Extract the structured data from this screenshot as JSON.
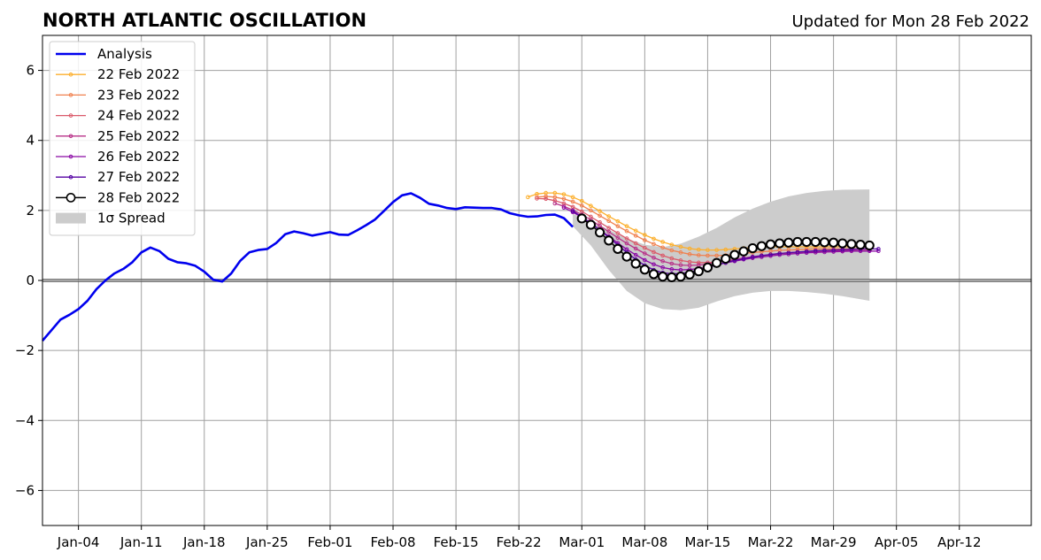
{
  "chart_data": {
    "type": "line",
    "title": "NORTH ATLANTIC OSCILLATION",
    "updated": "Updated for Mon 28 Feb 2022",
    "xlabel": "",
    "ylabel": "",
    "x_axis": {
      "start": "2021-12-31",
      "end": "2022-04-20",
      "ticks": [
        "Jan-04",
        "Jan-11",
        "Jan-18",
        "Jan-25",
        "Feb-01",
        "Feb-08",
        "Feb-15",
        "Feb-22",
        "Mar-01",
        "Mar-08",
        "Mar-15",
        "Mar-22",
        "Mar-29",
        "Apr-05",
        "Apr-12"
      ],
      "tick_dates": [
        "2022-01-04",
        "2022-01-11",
        "2022-01-18",
        "2022-01-25",
        "2022-02-01",
        "2022-02-08",
        "2022-02-15",
        "2022-02-22",
        "2022-03-01",
        "2022-03-08",
        "2022-03-15",
        "2022-03-22",
        "2022-03-29",
        "2022-04-05",
        "2022-04-12"
      ]
    },
    "ylim": [
      -7,
      7
    ],
    "yticks": [
      -6,
      -4,
      -2,
      0,
      2,
      4,
      6
    ],
    "ytick_labels": [
      "−6",
      "−4",
      "−2",
      "0",
      "2",
      "4",
      "6"
    ],
    "grid": true,
    "legend_position": "top-left",
    "legend": [
      "Analysis",
      "22 Feb 2022",
      "23 Feb 2022",
      "24 Feb 2022",
      "25 Feb 2022",
      "26 Feb 2022",
      "27 Feb 2022",
      "28 Feb 2022",
      "1σ Spread"
    ],
    "analysis": {
      "name": "Analysis",
      "color": "#0000ee",
      "points": [
        [
          "2021-12-31",
          -1.72
        ],
        [
          "2022-01-01",
          -1.42
        ],
        [
          "2022-01-02",
          -1.12
        ],
        [
          "2022-01-03",
          -0.98
        ],
        [
          "2022-01-04",
          -0.82
        ],
        [
          "2022-01-05",
          -0.58
        ],
        [
          "2022-01-06",
          -0.25
        ],
        [
          "2022-01-07",
          0.0
        ],
        [
          "2022-01-08",
          0.2
        ],
        [
          "2022-01-09",
          0.33
        ],
        [
          "2022-01-10",
          0.52
        ],
        [
          "2022-01-11",
          0.8
        ],
        [
          "2022-01-12",
          0.94
        ],
        [
          "2022-01-13",
          0.84
        ],
        [
          "2022-01-14",
          0.62
        ],
        [
          "2022-01-15",
          0.52
        ],
        [
          "2022-01-16",
          0.49
        ],
        [
          "2022-01-17",
          0.42
        ],
        [
          "2022-01-18",
          0.25
        ],
        [
          "2022-01-19",
          0.02
        ],
        [
          "2022-01-20",
          -0.03
        ],
        [
          "2022-01-21",
          0.2
        ],
        [
          "2022-01-22",
          0.56
        ],
        [
          "2022-01-23",
          0.8
        ],
        [
          "2022-01-24",
          0.87
        ],
        [
          "2022-01-25",
          0.9
        ],
        [
          "2022-01-26",
          1.07
        ],
        [
          "2022-01-27",
          1.32
        ],
        [
          "2022-01-28",
          1.4
        ],
        [
          "2022-01-29",
          1.35
        ],
        [
          "2022-01-30",
          1.28
        ],
        [
          "2022-01-31",
          1.33
        ],
        [
          "2022-02-01",
          1.38
        ],
        [
          "2022-02-02",
          1.31
        ],
        [
          "2022-02-03",
          1.3
        ],
        [
          "2022-02-04",
          1.43
        ],
        [
          "2022-02-05",
          1.58
        ],
        [
          "2022-02-06",
          1.74
        ],
        [
          "2022-02-07",
          1.99
        ],
        [
          "2022-02-08",
          2.24
        ],
        [
          "2022-02-09",
          2.43
        ],
        [
          "2022-02-10",
          2.49
        ],
        [
          "2022-02-11",
          2.36
        ],
        [
          "2022-02-12",
          2.19
        ],
        [
          "2022-02-13",
          2.14
        ],
        [
          "2022-02-14",
          2.07
        ],
        [
          "2022-02-15",
          2.04
        ],
        [
          "2022-02-16",
          2.09
        ],
        [
          "2022-02-17",
          2.08
        ],
        [
          "2022-02-18",
          2.07
        ],
        [
          "2022-02-19",
          2.07
        ],
        [
          "2022-02-20",
          2.03
        ],
        [
          "2022-02-21",
          1.92
        ],
        [
          "2022-02-22",
          1.86
        ],
        [
          "2022-02-23",
          1.82
        ],
        [
          "2022-02-24",
          1.83
        ],
        [
          "2022-02-25",
          1.87
        ],
        [
          "2022-02-26",
          1.88
        ],
        [
          "2022-02-27",
          1.78
        ],
        [
          "2022-02-28",
          1.53
        ]
      ]
    },
    "forecasts": [
      {
        "name": "22 Feb 2022",
        "color": "#fcaf2c",
        "start": "2022-02-23",
        "values": [
          2.38,
          2.47,
          2.5,
          2.5,
          2.46,
          2.38,
          2.27,
          2.13,
          1.98,
          1.83,
          1.69,
          1.55,
          1.42,
          1.3,
          1.19,
          1.1,
          1.02,
          0.96,
          0.91,
          0.88,
          0.87,
          0.87,
          0.88,
          0.9,
          0.92,
          0.94,
          0.95,
          0.96,
          0.96,
          0.96,
          0.96,
          0.96,
          0.96,
          0.96,
          0.96,
          0.96,
          0.96,
          0.96,
          0.96
        ]
      },
      {
        "name": "23 Feb 2022",
        "color": "#f0804e",
        "start": "2022-02-24",
        "values": [
          2.38,
          2.4,
          2.38,
          2.33,
          2.25,
          2.14,
          2.0,
          1.85,
          1.7,
          1.55,
          1.41,
          1.28,
          1.15,
          1.04,
          0.94,
          0.86,
          0.8,
          0.75,
          0.72,
          0.71,
          0.71,
          0.72,
          0.74,
          0.77,
          0.8,
          0.82,
          0.84,
          0.86,
          0.87,
          0.88,
          0.89,
          0.9,
          0.9,
          0.9,
          0.9,
          0.9,
          0.9,
          0.9
        ]
      },
      {
        "name": "24 Feb 2022",
        "color": "#da5a6a",
        "start": "2022-02-24",
        "values": [
          2.34,
          2.33,
          2.28,
          2.2,
          2.1,
          1.97,
          1.82,
          1.66,
          1.5,
          1.35,
          1.2,
          1.06,
          0.93,
          0.81,
          0.71,
          0.63,
          0.57,
          0.53,
          0.51,
          0.51,
          0.52,
          0.55,
          0.58,
          0.62,
          0.66,
          0.7,
          0.73,
          0.76,
          0.78,
          0.8,
          0.82,
          0.83,
          0.84,
          0.85,
          0.86,
          0.86,
          0.86,
          0.86
        ]
      },
      {
        "name": "25 Feb 2022",
        "color": "#b83289",
        "start": "2022-02-26",
        "values": [
          2.2,
          2.12,
          2.01,
          1.88,
          1.73,
          1.56,
          1.39,
          1.22,
          1.06,
          0.91,
          0.77,
          0.65,
          0.55,
          0.48,
          0.44,
          0.43,
          0.44,
          0.47,
          0.51,
          0.55,
          0.6,
          0.64,
          0.68,
          0.71,
          0.74,
          0.77,
          0.79,
          0.81,
          0.82,
          0.83,
          0.84,
          0.85,
          0.85,
          0.85,
          0.85,
          0.85
        ]
      },
      {
        "name": "26 Feb 2022",
        "color": "#8b0aa5",
        "start": "2022-02-27",
        "values": [
          2.08,
          1.95,
          1.8,
          1.63,
          1.45,
          1.26,
          1.07,
          0.89,
          0.73,
          0.58,
          0.46,
          0.37,
          0.32,
          0.3,
          0.31,
          0.34,
          0.39,
          0.45,
          0.5,
          0.55,
          0.6,
          0.64,
          0.67,
          0.7,
          0.73,
          0.75,
          0.77,
          0.79,
          0.8,
          0.81,
          0.82,
          0.83,
          0.84,
          0.84,
          0.84,
          0.84
        ]
      },
      {
        "name": "27 Feb 2022",
        "color": "#5402a3",
        "start": "2022-02-28",
        "values": [
          1.98,
          1.82,
          1.64,
          1.44,
          1.23,
          1.01,
          0.8,
          0.6,
          0.43,
          0.3,
          0.22,
          0.19,
          0.2,
          0.24,
          0.3,
          0.37,
          0.44,
          0.51,
          0.57,
          0.62,
          0.67,
          0.71,
          0.74,
          0.77,
          0.79,
          0.81,
          0.83,
          0.85,
          0.86,
          0.87,
          0.88,
          0.89,
          0.9,
          0.9,
          0.9
        ]
      }
    ],
    "current": {
      "name": "28 Feb 2022",
      "color": "#000000",
      "start": "2022-03-01",
      "values": [
        1.77,
        1.59,
        1.37,
        1.14,
        0.9,
        0.68,
        0.48,
        0.31,
        0.18,
        0.11,
        0.09,
        0.11,
        0.17,
        0.26,
        0.37,
        0.5,
        0.62,
        0.73,
        0.83,
        0.92,
        0.98,
        1.03,
        1.06,
        1.08,
        1.1,
        1.1,
        1.1,
        1.09,
        1.08,
        1.06,
        1.04,
        1.02,
        1.0
      ]
    },
    "spread": {
      "name": "1σ Spread",
      "color": "#cccccc",
      "start": "2022-02-28",
      "dates": [
        "2022-02-28",
        "2022-03-02",
        "2022-03-04",
        "2022-03-06",
        "2022-03-08",
        "2022-03-10",
        "2022-03-12",
        "2022-03-14",
        "2022-03-16",
        "2022-03-18",
        "2022-03-20",
        "2022-03-22",
        "2022-03-24",
        "2022-03-26",
        "2022-03-28",
        "2022-03-30",
        "2022-04-02"
      ],
      "upper": [
        1.9,
        1.7,
        1.45,
        1.2,
        1.02,
        0.95,
        1.05,
        1.25,
        1.5,
        1.8,
        2.05,
        2.25,
        2.4,
        2.5,
        2.56,
        2.59,
        2.6
      ],
      "lower": [
        1.55,
        1.0,
        0.3,
        -0.3,
        -0.65,
        -0.82,
        -0.85,
        -0.78,
        -0.6,
        -0.45,
        -0.35,
        -0.3,
        -0.3,
        -0.33,
        -0.38,
        -0.45,
        -0.58
      ]
    }
  }
}
